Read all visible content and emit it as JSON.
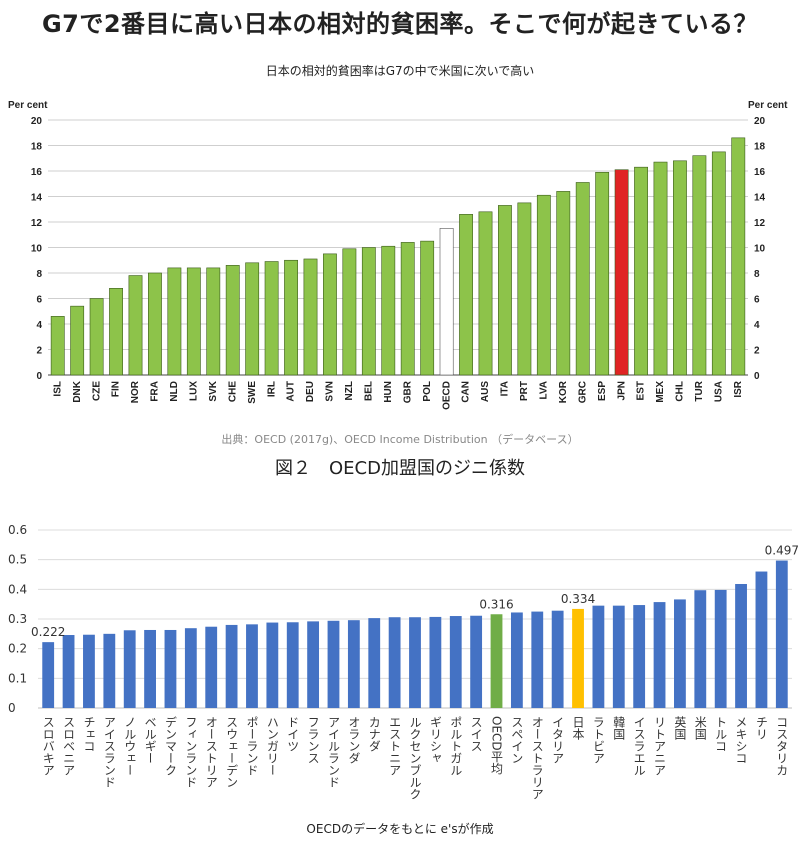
{
  "page": {
    "headline": "G7で2番目に高い日本の相対的貧困率。そこで何が起きている？",
    "chart1_subtitle": "日本の相対的貧困率はG7の中で米国に次いで高い",
    "chart1_source": "出典：OECD (2017g)、OECD Income Distribution （データベース）",
    "chart2_title": "図２　OECD加盟国のジニ係数",
    "chart2_note": "OECDのデータをもとに e'sが作成"
  },
  "colors": {
    "green_bar": "#8dc34a",
    "red_bar": "#e02424",
    "oecd_bar": "#ffffff",
    "blue_bar": "#4472c4",
    "oecd_avg_bar": "#70ad47",
    "japan_bar": "#ffc000"
  },
  "chart_data": [
    {
      "type": "bar",
      "ylabel_left": "Per cent",
      "ylabel_right": "Per cent",
      "ylim": [
        0,
        20
      ],
      "yticks": [
        0,
        2,
        4,
        6,
        8,
        10,
        12,
        14,
        16,
        18,
        20
      ],
      "grid": true,
      "categories": [
        "ISL",
        "DNK",
        "CZE",
        "FIN",
        "NOR",
        "FRA",
        "NLD",
        "LUX",
        "SVK",
        "CHE",
        "SWE",
        "IRL",
        "AUT",
        "DEU",
        "SVN",
        "NZL",
        "BEL",
        "HUN",
        "GBR",
        "POL",
        "OECD",
        "CAN",
        "AUS",
        "ITA",
        "PRT",
        "LVA",
        "KOR",
        "GRC",
        "ESP",
        "JPN",
        "EST",
        "MEX",
        "CHL",
        "TUR",
        "USA",
        "ISR"
      ],
      "values": [
        4.6,
        5.4,
        6.0,
        6.8,
        7.8,
        8.0,
        8.4,
        8.4,
        8.4,
        8.6,
        8.8,
        8.9,
        9.0,
        9.1,
        9.5,
        9.9,
        10.0,
        10.1,
        10.4,
        10.5,
        11.5,
        12.6,
        12.8,
        13.3,
        13.5,
        14.1,
        14.4,
        15.1,
        15.9,
        16.1,
        16.3,
        16.7,
        16.8,
        17.2,
        17.5,
        18.6
      ],
      "highlight": {
        "JPN": "red",
        "OECD": "white"
      }
    },
    {
      "type": "bar",
      "ylim": [
        0,
        0.6
      ],
      "yticks": [
        "0",
        "0.1",
        "0.2",
        "0.3",
        "0.4",
        "0.5",
        "0.6"
      ],
      "grid": true,
      "categories": [
        "スロバキア",
        "スロベニア",
        "チェコ",
        "アイスランド",
        "ノルウェー",
        "ベルギー",
        "デンマーク",
        "フィンランド",
        "オーストリア",
        "スウェーデン",
        "ポーランド",
        "ハンガリー",
        "ドイツ",
        "フランス",
        "アイルランド",
        "オランダ",
        "カナダ",
        "エストニア",
        "ルクセンブルク",
        "ギリシャ",
        "ポルトガル",
        "スイス",
        "OECD平均",
        "スペイン",
        "オーストラリア",
        "イタリア",
        "日本",
        "ラトビア",
        "韓国",
        "イスラエル",
        "リトアニア",
        "英国",
        "米国",
        "トルコ",
        "メキシコ",
        "チリ",
        "コスタリカ"
      ],
      "values": [
        0.222,
        0.246,
        0.247,
        0.25,
        0.262,
        0.263,
        0.263,
        0.269,
        0.274,
        0.28,
        0.282,
        0.288,
        0.289,
        0.292,
        0.294,
        0.296,
        0.303,
        0.306,
        0.306,
        0.307,
        0.31,
        0.311,
        0.316,
        0.322,
        0.325,
        0.328,
        0.334,
        0.345,
        0.345,
        0.347,
        0.357,
        0.366,
        0.397,
        0.398,
        0.418,
        0.46,
        0.497
      ],
      "data_labels": {
        "スロバキア": "0.222",
        "OECD平均": "0.316",
        "日本": "0.334",
        "コスタリカ": "0.497"
      },
      "highlight": {
        "OECD平均": "green",
        "日本": "yellow"
      }
    }
  ]
}
